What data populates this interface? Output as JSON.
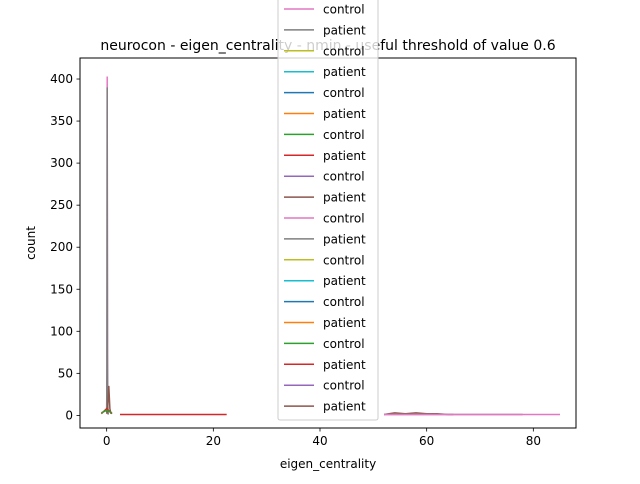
{
  "chart_data": {
    "type": "line",
    "title": "neurocon - eigen_centrality - nmin - useful threshold of value 0.6",
    "xlabel": "eigen_centrality",
    "ylabel": "count",
    "xlim": [
      -5,
      88
    ],
    "ylim": [
      -15,
      425
    ],
    "xticks": [
      0,
      20,
      40,
      60,
      80
    ],
    "yticks": [
      0,
      50,
      100,
      150,
      200,
      250,
      300,
      350,
      400
    ],
    "grid": false,
    "legend_position": "upper-center",
    "legend_entries": [
      "control",
      "patient",
      "control",
      "patient",
      "control",
      "patient",
      "control",
      "patient",
      "control",
      "patient",
      "control",
      "patient",
      "control",
      "patient",
      "control",
      "patient",
      "control",
      "patient",
      "control",
      "patient"
    ],
    "legend_colors": [
      "#e377c2",
      "#7f7f7f",
      "#bcbd22",
      "#17becf",
      "#1f77b4",
      "#ff7f0e",
      "#2ca02c",
      "#d62728",
      "#9467bd",
      "#8c564b",
      "#e377c2",
      "#7f7f7f",
      "#bcbd22",
      "#17becf",
      "#1f77b4",
      "#ff7f0e",
      "#2ca02c",
      "#d62728",
      "#9467bd",
      "#8c564b"
    ],
    "series": [
      {
        "color": "#e377c2",
        "x": [
          0,
          0.05,
          0.1,
          0.15,
          0.2,
          0.25,
          0.3
        ],
        "y": [
          5,
          60,
          403,
          80,
          15,
          4,
          1
        ]
      },
      {
        "color": "#7f7f7f",
        "x": [
          0,
          0.05,
          0.1,
          0.15,
          0.2,
          0.25,
          0.3
        ],
        "y": [
          4,
          50,
          390,
          70,
          12,
          3,
          1
        ]
      },
      {
        "color": "#8c564b",
        "x": [
          0,
          0.2,
          0.4,
          0.6,
          0.8
        ],
        "y": [
          2,
          10,
          35,
          8,
          2
        ]
      },
      {
        "color": "#d62728",
        "x": [
          -1,
          0,
          1
        ],
        "y": [
          2,
          8,
          2
        ]
      },
      {
        "color": "#2ca02c",
        "x": [
          -1,
          0,
          1
        ],
        "y": [
          3,
          6,
          3
        ]
      },
      {
        "color": "#d62728",
        "x": [
          2.5,
          22.5
        ],
        "y": [
          1,
          1
        ]
      },
      {
        "color": "#8c564b",
        "x": [
          52,
          54,
          56,
          58,
          60,
          62,
          64,
          65
        ],
        "y": [
          1,
          3,
          2,
          3,
          2,
          2,
          1,
          1
        ]
      },
      {
        "color": "#7f7f7f",
        "x": [
          52,
          60,
          70,
          78
        ],
        "y": [
          1,
          1,
          1,
          1
        ]
      },
      {
        "color": "#e377c2",
        "x": [
          52,
          65,
          78,
          85
        ],
        "y": [
          1,
          1,
          1,
          1
        ]
      }
    ]
  }
}
